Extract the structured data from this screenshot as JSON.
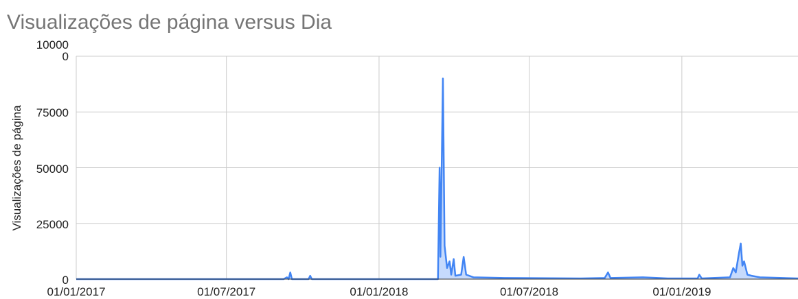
{
  "chart_data": {
    "type": "area",
    "title": "Visualizações de página versus Dia",
    "y_label": "Visualizações de página",
    "x": [
      "2017-01-01",
      "2017-09-08",
      "2017-09-12",
      "2017-09-14",
      "2017-09-16",
      "2017-09-18",
      "2017-10-08",
      "2017-10-10",
      "2017-10-12",
      "2018-02-05",
      "2018-03-13",
      "2018-03-15",
      "2018-03-16",
      "2018-03-19",
      "2018-03-21",
      "2018-03-24",
      "2018-03-27",
      "2018-03-29",
      "2018-04-01",
      "2018-04-03",
      "2018-04-10",
      "2018-04-13",
      "2018-04-16",
      "2018-04-25",
      "2018-06-01",
      "2018-09-01",
      "2018-09-30",
      "2018-10-04",
      "2018-10-07",
      "2018-11-15",
      "2018-12-15",
      "2019-01-20",
      "2019-01-22",
      "2019-01-25",
      "2019-02-28",
      "2019-03-04",
      "2019-03-07",
      "2019-03-11",
      "2019-03-13",
      "2019-03-15",
      "2019-03-17",
      "2019-03-21",
      "2019-03-26",
      "2019-04-05",
      "2019-05-21"
    ],
    "series": [
      {
        "name": "Visualizações de página",
        "color": "#4285f4",
        "values": [
          0,
          0,
          800,
          0,
          3000,
          0,
          0,
          1500,
          0,
          0,
          0,
          50000,
          10000,
          90000,
          15000,
          5000,
          8000,
          2000,
          9000,
          1500,
          2000,
          10000,
          2000,
          800,
          500,
          300,
          500,
          3000,
          500,
          800,
          300,
          300,
          2000,
          300,
          800,
          5000,
          3000,
          12000,
          16000,
          6000,
          8000,
          2000,
          1500,
          800,
          300
        ]
      }
    ],
    "xlim": [
      "2017-01-01",
      "2019-05-21"
    ],
    "xticks": [
      {
        "value": "2017-01-01",
        "label": "01/01/2017"
      },
      {
        "value": "2017-07-01",
        "label": "01/07/2017"
      },
      {
        "value": "2018-01-01",
        "label": "01/01/2018"
      },
      {
        "value": "2018-07-01",
        "label": "01/07/2018"
      },
      {
        "value": "2019-01-01",
        "label": "01/01/2019"
      }
    ],
    "ylim": [
      0,
      100000
    ],
    "yticks": [
      0,
      25000,
      50000,
      75000,
      100000
    ],
    "grid": true
  }
}
